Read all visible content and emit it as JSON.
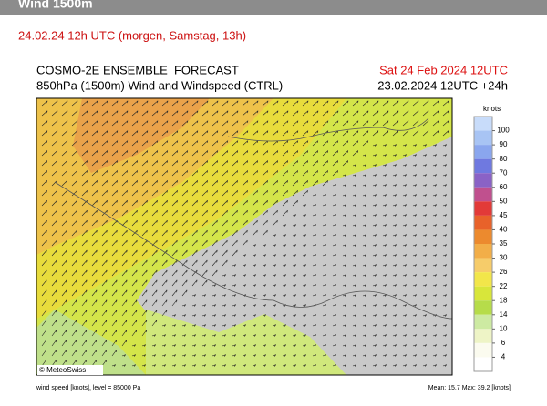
{
  "header": {
    "title": "Wind 1500m",
    "subtitle": "24.02.24 12h UTC (morgen, Samstag, 13h)"
  },
  "map": {
    "title": "COSMO-2E ENSEMBLE_FORECAST",
    "subtitle": "850hPa (1500m) Wind and Windspeed (CTRL)",
    "valid_time": "Sat 24 Feb 2024 12UTC",
    "run_time": "23.02.2024 12UTC +24h",
    "credit": "© MeteoSwiss",
    "footer_left": "wind speed [knots], level = 85000 Pa",
    "footer_right": "Mean:  15.7 Max:  39.2 [knots]"
  },
  "legend": {
    "unit": "knots",
    "levels": [
      100,
      90,
      80,
      70,
      60,
      50,
      45,
      40,
      35,
      30,
      26,
      22,
      18,
      14,
      10,
      6,
      4
    ],
    "colors": [
      "#c8dcfa",
      "#a8c4f4",
      "#8aa6ee",
      "#6f79e0",
      "#8a62c6",
      "#c0508e",
      "#e23a38",
      "#e8622a",
      "#ec8a2e",
      "#f2ae48",
      "#f6cc6a",
      "#f2e64a",
      "#d8e63a",
      "#b6dc4a",
      "#cdeaa2",
      "#eef4c6",
      "#fbfbef",
      "#ffffff"
    ]
  }
}
